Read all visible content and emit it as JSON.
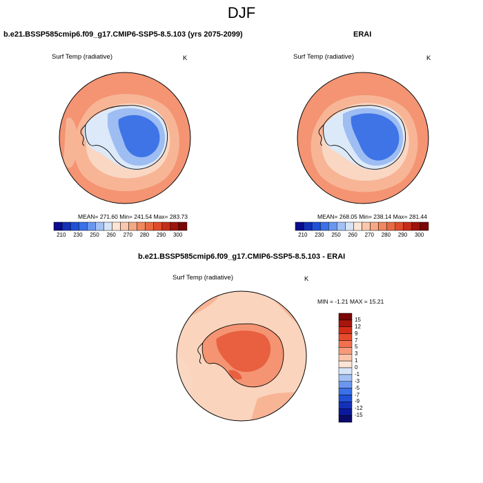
{
  "figure": {
    "season_title": "DJF"
  },
  "panels": {
    "model": {
      "title": "b.e21.BSSP585cmip6.f09_g17.CMIP6-SSP5-8.5.103 (yrs 2075-2099)",
      "variable": "Surf Temp (radiative)",
      "units": "K",
      "stats": "MEAN= 271.60   Min= 241.54   Max= 283.73"
    },
    "obs": {
      "title": "ERAI",
      "variable": "Surf Temp (radiative)",
      "units": "K",
      "stats": "MEAN= 268.05   Min= 238.14   Max= 281.44"
    },
    "diff": {
      "title": "b.e21.BSSP585cmip6.f09_g17.CMIP6-SSP5-8.5.103 - ERAI",
      "variable": "Surf Temp (radiative)",
      "units": "K",
      "stats": "MIN =  -1.21 MAX =  15.21"
    }
  },
  "colorbar_abs": {
    "tick_labels": [
      "210",
      "230",
      "250",
      "260",
      "270",
      "280",
      "290",
      "300"
    ],
    "colors": [
      "#0b0b8c",
      "#1530b8",
      "#2050d8",
      "#3a70e8",
      "#6a96f0",
      "#a3c1f5",
      "#d6e4f8",
      "#fde5d5",
      "#f9c7ad",
      "#f5a882",
      "#f08860",
      "#e86a42",
      "#de4c2a",
      "#c42e18",
      "#a0140c",
      "#7a0606"
    ]
  },
  "colorbar_diff": {
    "tick_labels": [
      "15",
      "12",
      "9",
      "7",
      "5",
      "3",
      "1",
      "0",
      "-1",
      "-3",
      "-5",
      "-7",
      "-9",
      "-12",
      "-15"
    ],
    "colors": [
      "#7a0606",
      "#a8150c",
      "#d42e18",
      "#e84b2c",
      "#f27050",
      "#f79a7a",
      "#fbc5aa",
      "#fde5d5",
      "#d6e4f8",
      "#a3c1f5",
      "#6a96f0",
      "#3a70e8",
      "#2050d8",
      "#1530b8",
      "#0b1a9c",
      "#0b0b6c"
    ]
  },
  "colors": {
    "ocean_warm": "#f49472",
    "ocean_mid": "#f7b596",
    "ocean_light": "#fad7c3",
    "ice_light": "#dce9f9",
    "ice_mid": "#9ebdf2",
    "ice_deep": "#3e74e6",
    "diff_strong": "#e86040",
    "diff_mid": "#f49472",
    "diff_light": "#fad4bd"
  }
}
